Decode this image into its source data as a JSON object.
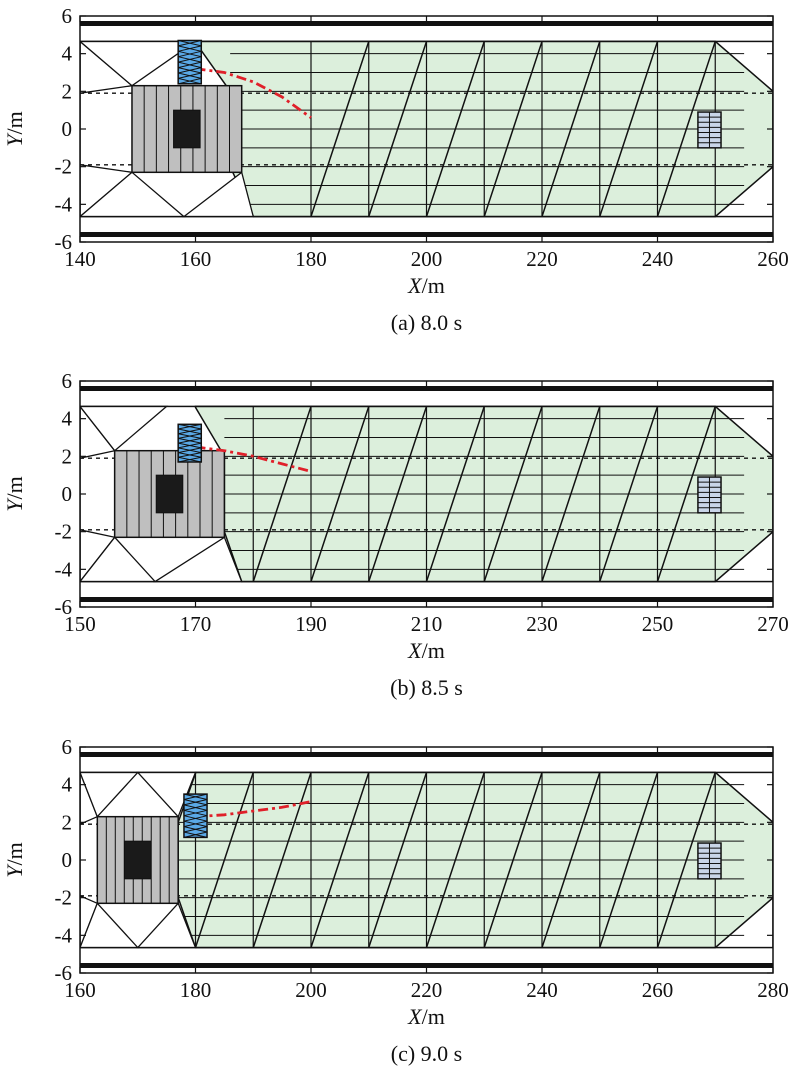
{
  "chart_data": [
    {
      "type": "diagram",
      "caption": "(a) 8.0 s",
      "xlabel": "X/m",
      "ylabel": "Y/m",
      "xlim": [
        140,
        260
      ],
      "ylim": [
        -6,
        6
      ],
      "xticks": [
        140,
        160,
        180,
        200,
        220,
        240,
        260
      ],
      "yticks": [
        6,
        4,
        2,
        0,
        -2,
        -4,
        -6
      ],
      "road": {
        "outer_y": [
          5.6,
          -5.6
        ],
        "inner_y": [
          4.65,
          -4.65
        ],
        "lane_y": [
          1.9,
          -1.9
        ]
      },
      "region": {
        "x_left": 180,
        "x_right": 260,
        "x_front": 250,
        "tip_y": 2,
        "tip2_y": -2,
        "hx": 166,
        "hy": 2,
        "tipx": 160,
        "tipy": 4.6,
        "corner_top_x": 178,
        "corner_bot_x": 170
      },
      "mesh_top_x": [
        160,
        170,
        180,
        190,
        200,
        210,
        220,
        230,
        240,
        250
      ],
      "mesh_bot_x": [
        180,
        190,
        200,
        210,
        220,
        230,
        240,
        250
      ],
      "ego": {
        "x": [
          149,
          168
        ],
        "y": [
          -2.3,
          2.3
        ]
      },
      "target": {
        "x": [
          157,
          161
        ],
        "y": [
          2.4,
          4.7
        ]
      },
      "leader": {
        "x": [
          247,
          251
        ],
        "y": [
          -1,
          0.9
        ]
      },
      "path": {
        "x": [
          160,
          165,
          170,
          175,
          180
        ],
        "y": [
          3.2,
          3.0,
          2.5,
          1.7,
          0.6
        ]
      },
      "left_tris": [
        [
          [
            140,
            4.65
          ],
          [
            149,
            2.3
          ],
          [
            140,
            1.9
          ]
        ],
        [
          [
            140,
            -4.65
          ],
          [
            149,
            -2.3
          ],
          [
            140,
            -1.9
          ]
        ],
        [
          [
            140,
            4.65
          ],
          [
            149,
            2.3
          ],
          [
            160,
            4.65
          ]
        ],
        [
          [
            140,
            -4.65
          ],
          [
            149,
            -2.3
          ],
          [
            158,
            -4.65
          ]
        ],
        [
          [
            158,
            -4.65
          ],
          [
            168,
            -2.3
          ],
          [
            170,
            -4.65
          ]
        ]
      ]
    },
    {
      "type": "diagram",
      "caption": "(b) 8.5 s",
      "xlabel": "X/m",
      "ylabel": "Y/m",
      "xlim": [
        150,
        270
      ],
      "ylim": [
        -6,
        6
      ],
      "xticks": [
        150,
        170,
        190,
        210,
        230,
        250,
        270
      ],
      "yticks": [
        6,
        4,
        2,
        0,
        -2,
        -4,
        -6
      ],
      "road": {
        "outer_y": [
          5.6,
          -5.6
        ],
        "inner_y": [
          4.65,
          -4.65
        ],
        "lane_y": [
          1.9,
          -1.9
        ]
      },
      "region": {
        "x_left": 180,
        "x_right": 270,
        "x_front": 260,
        "tip_y": 2,
        "tip2_y": -2,
        "hx": 175,
        "hy": 2,
        "tipx": 170,
        "tipy": 4.6,
        "corner_top_x": 180,
        "corner_bot_x": 178
      },
      "mesh_top_x": [
        170,
        180,
        190,
        200,
        210,
        220,
        230,
        240,
        250,
        260
      ],
      "mesh_bot_x": [
        180,
        190,
        200,
        210,
        220,
        230,
        240,
        250,
        260
      ],
      "ego": {
        "x": [
          156,
          175
        ],
        "y": [
          -2.3,
          2.3
        ]
      },
      "target": {
        "x": [
          167,
          171
        ],
        "y": [
          1.7,
          3.7
        ]
      },
      "leader": {
        "x": [
          257,
          261
        ],
        "y": [
          -1,
          0.9
        ]
      },
      "path": {
        "x": [
          170,
          175,
          180,
          185,
          190
        ],
        "y": [
          2.5,
          2.3,
          2.0,
          1.6,
          1.2
        ]
      },
      "left_tris": [
        [
          [
            150,
            4.65
          ],
          [
            156,
            2.3
          ],
          [
            150,
            1.9
          ]
        ],
        [
          [
            150,
            -4.65
          ],
          [
            156,
            -2.3
          ],
          [
            150,
            -1.9
          ]
        ],
        [
          [
            150,
            4.65
          ],
          [
            156,
            2.3
          ],
          [
            165,
            4.65
          ]
        ],
        [
          [
            150,
            -4.65
          ],
          [
            156,
            -2.3
          ],
          [
            163,
            -4.65
          ]
        ],
        [
          [
            163,
            -4.65
          ],
          [
            175,
            -2.3
          ],
          [
            178,
            -4.65
          ]
        ]
      ]
    },
    {
      "type": "diagram",
      "caption": "(c) 9.0 s",
      "xlabel": "X/m",
      "ylabel": "Y/m",
      "xlim": [
        160,
        280
      ],
      "ylim": [
        -6,
        6
      ],
      "xticks": [
        160,
        180,
        200,
        220,
        240,
        260,
        280
      ],
      "yticks": [
        6,
        4,
        2,
        0,
        -2,
        -4,
        -6
      ],
      "road": {
        "outer_y": [
          5.6,
          -5.6
        ],
        "inner_y": [
          4.65,
          -4.65
        ],
        "lane_y": [
          1.9,
          -1.9
        ]
      },
      "region": {
        "x_left": 180,
        "x_right": 280,
        "x_front": 270,
        "tip_y": 2,
        "tip2_y": -2,
        "hx": 177,
        "hy": 2,
        "tipx": 180,
        "tipy": 4.6,
        "corner_top_x": 180,
        "corner_bot_x": 180
      },
      "mesh_top_x": [
        180,
        190,
        200,
        210,
        220,
        230,
        240,
        250,
        260,
        270
      ],
      "mesh_bot_x": [
        180,
        190,
        200,
        210,
        220,
        230,
        240,
        250,
        260,
        270
      ],
      "ego": {
        "x": [
          163,
          177
        ],
        "y": [
          -2.3,
          2.3
        ]
      },
      "target": {
        "x": [
          178,
          182
        ],
        "y": [
          1.2,
          3.5
        ]
      },
      "leader": {
        "x": [
          267,
          271
        ],
        "y": [
          -1,
          0.9
        ]
      },
      "path": {
        "x": [
          180,
          185,
          190,
          195,
          200
        ],
        "y": [
          2.3,
          2.4,
          2.6,
          2.8,
          3.1
        ]
      },
      "left_tris": [
        [
          [
            160,
            4.65
          ],
          [
            163,
            2.3
          ],
          [
            160,
            1.9
          ]
        ],
        [
          [
            160,
            -4.65
          ],
          [
            163,
            -2.3
          ],
          [
            160,
            -1.9
          ]
        ],
        [
          [
            160,
            4.65
          ],
          [
            163,
            2.3
          ],
          [
            170,
            4.65
          ]
        ],
        [
          [
            160,
            -4.65
          ],
          [
            163,
            -2.3
          ],
          [
            170,
            -4.65
          ]
        ],
        [
          [
            170,
            -4.65
          ],
          [
            177,
            -2.3
          ],
          [
            180,
            -4.65
          ]
        ],
        [
          [
            170,
            4.65
          ],
          [
            177,
            2.3
          ],
          [
            180,
            4.65
          ]
        ]
      ]
    }
  ],
  "colors": {
    "region_fill": "#dcefdc",
    "ego_fill": "#bfbfbf",
    "ego_core": "#1a1a1a",
    "target_fill": "#5aa9e6",
    "leader_fill": "#c9d5e8",
    "path": "#e0202a"
  }
}
